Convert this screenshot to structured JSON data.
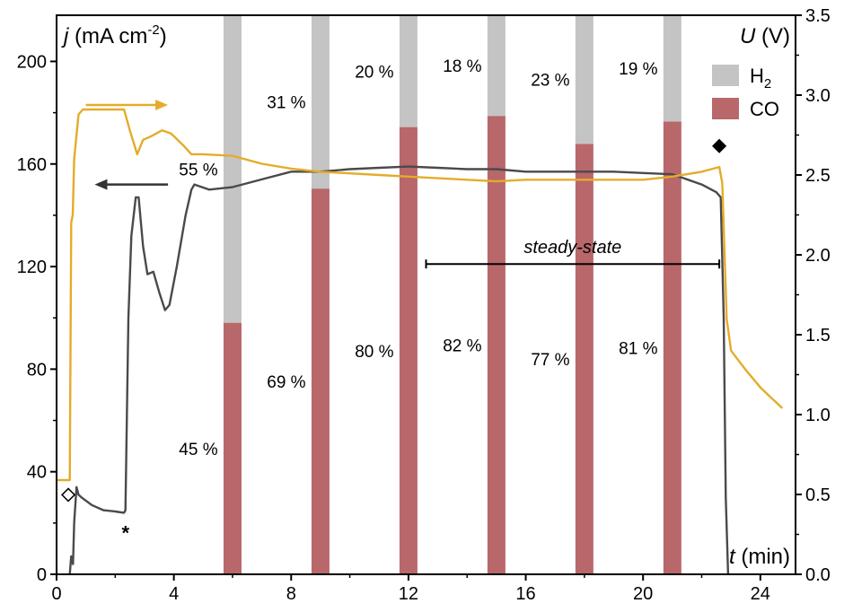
{
  "chart_data": {
    "type": "line",
    "xlabel": {
      "symbol": "t",
      "unit": " (min)"
    },
    "ylabel_left": {
      "symbol": "j",
      "unit": " (mA cm",
      "sup": "-2",
      "close": ")"
    },
    "ylabel_right": {
      "symbol": "U",
      "unit": " (V)"
    },
    "x_ticks": [
      "0",
      "4",
      "8",
      "12",
      "16",
      "20",
      "24"
    ],
    "y_left_ticks": [
      "0",
      "40",
      "80",
      "120",
      "160",
      "200"
    ],
    "y_right_ticks": [
      "0.0",
      "0.5",
      "1.0",
      "1.5",
      "2.0",
      "2.5",
      "3.0",
      "3.5"
    ],
    "xlim": [
      0,
      25.2
    ],
    "ylim_left": [
      0,
      218
    ],
    "ylim_right": [
      0,
      3.5
    ],
    "legend": [
      {
        "label": "H",
        "sub": "2",
        "color": "#c4c4c4"
      },
      {
        "label": "CO",
        "color": "#b8676a"
      }
    ],
    "faradaic_efficiency_bars": [
      {
        "t": 6.0,
        "CO": 45,
        "H2": 55,
        "co_label": "45 %",
        "h2_label": "55 %"
      },
      {
        "t": 9.0,
        "CO": 69,
        "H2": 31,
        "co_label": "69 %",
        "h2_label": "31 %"
      },
      {
        "t": 12.0,
        "CO": 80,
        "H2": 20,
        "co_label": "80 %",
        "h2_label": "20 %"
      },
      {
        "t": 15.0,
        "CO": 82,
        "H2": 18,
        "co_label": "82 %",
        "h2_label": "18 %"
      },
      {
        "t": 18.0,
        "CO": 77,
        "H2": 23,
        "co_label": "77 %",
        "h2_label": "23 %"
      },
      {
        "t": 21.0,
        "CO": 81,
        "H2": 19,
        "co_label": "81 %",
        "h2_label": "19 %"
      }
    ],
    "series": [
      {
        "axis": "left",
        "color": "#4a4a4a",
        "points": [
          [
            0.45,
            0
          ],
          [
            0.5,
            7
          ],
          [
            0.56,
            4
          ],
          [
            0.6,
            20
          ],
          [
            0.68,
            34
          ],
          [
            0.75,
            31
          ],
          [
            0.85,
            30
          ],
          [
            1.2,
            27
          ],
          [
            1.6,
            25
          ],
          [
            2.0,
            24.5
          ],
          [
            2.3,
            24
          ],
          [
            2.35,
            25
          ],
          [
            2.45,
            100
          ],
          [
            2.55,
            132
          ],
          [
            2.7,
            147
          ],
          [
            2.8,
            147
          ],
          [
            2.95,
            128
          ],
          [
            3.1,
            117
          ],
          [
            3.3,
            118
          ],
          [
            3.5,
            110
          ],
          [
            3.7,
            103
          ],
          [
            3.85,
            105
          ],
          [
            4.1,
            120
          ],
          [
            4.4,
            140
          ],
          [
            4.6,
            150
          ],
          [
            4.7,
            152
          ],
          [
            5.2,
            150
          ],
          [
            6.0,
            151
          ],
          [
            7.0,
            154
          ],
          [
            8.0,
            157
          ],
          [
            9.0,
            157
          ],
          [
            10.0,
            158
          ],
          [
            11.0,
            158.5
          ],
          [
            12.0,
            159
          ],
          [
            13.0,
            158.5
          ],
          [
            14.0,
            158
          ],
          [
            15.0,
            158
          ],
          [
            16.0,
            157
          ],
          [
            17.0,
            157
          ],
          [
            18.0,
            157
          ],
          [
            19.0,
            157
          ],
          [
            20.0,
            156.5
          ],
          [
            21.0,
            156
          ],
          [
            22.0,
            152
          ],
          [
            22.5,
            149
          ],
          [
            22.65,
            147
          ],
          [
            22.75,
            100
          ],
          [
            22.82,
            30
          ],
          [
            22.9,
            0
          ]
        ]
      },
      {
        "axis": "right",
        "color": "#e3ac2a",
        "points": [
          [
            0.0,
            0.59
          ],
          [
            0.45,
            0.59
          ],
          [
            0.5,
            2.2
          ],
          [
            0.55,
            2.25
          ],
          [
            0.6,
            2.6
          ],
          [
            0.75,
            2.88
          ],
          [
            0.9,
            2.91
          ],
          [
            1.5,
            2.91
          ],
          [
            2.3,
            2.91
          ],
          [
            2.5,
            2.78
          ],
          [
            2.75,
            2.63
          ],
          [
            2.95,
            2.72
          ],
          [
            3.2,
            2.74
          ],
          [
            3.6,
            2.78
          ],
          [
            3.9,
            2.76
          ],
          [
            4.3,
            2.69
          ],
          [
            4.6,
            2.63
          ],
          [
            5.0,
            2.63
          ],
          [
            6.0,
            2.62
          ],
          [
            7.0,
            2.57
          ],
          [
            8.0,
            2.54
          ],
          [
            9.0,
            2.52
          ],
          [
            10.0,
            2.51
          ],
          [
            11.0,
            2.5
          ],
          [
            12.0,
            2.49
          ],
          [
            13.0,
            2.48
          ],
          [
            14.0,
            2.47
          ],
          [
            15.0,
            2.46
          ],
          [
            16.0,
            2.47
          ],
          [
            17.0,
            2.47
          ],
          [
            18.0,
            2.47
          ],
          [
            19.0,
            2.47
          ],
          [
            20.0,
            2.47
          ],
          [
            21.0,
            2.49
          ],
          [
            22.0,
            2.52
          ],
          [
            22.6,
            2.55
          ],
          [
            22.7,
            2.45
          ],
          [
            22.85,
            1.6
          ],
          [
            23.0,
            1.4
          ],
          [
            23.5,
            1.28
          ],
          [
            24.0,
            1.17
          ],
          [
            24.4,
            1.1
          ],
          [
            24.75,
            1.04
          ]
        ]
      }
    ],
    "annotations": {
      "steady_state": {
        "label": "steady-state",
        "x_start": 12.6,
        "x_end": 22.6,
        "y": 121
      },
      "open_diamond": {
        "t": 0.4,
        "j": 31
      },
      "filled_diamond": {
        "t": 22.6,
        "j": 167
      },
      "asterisk": {
        "label": "*",
        "t": 2.35,
        "j": 17
      },
      "arrow_right": {
        "x_start": 1.0,
        "x_end": 3.8,
        "y": 183
      },
      "arrow_left": {
        "x_start": 3.8,
        "x_end": 1.3,
        "y": 152
      }
    },
    "grid": false
  }
}
